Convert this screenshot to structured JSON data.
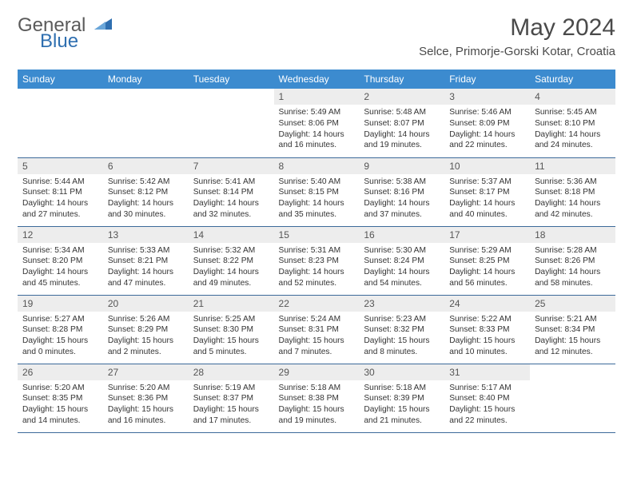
{
  "brand": {
    "part1": "General",
    "part2": "Blue"
  },
  "title": "May 2024",
  "location": "Selce, Primorje-Gorski Kotar, Croatia",
  "colors": {
    "header_bg": "#3c8bcf",
    "header_text": "#ffffff",
    "daynum_bg": "#ededed",
    "row_border": "#3c6a9a",
    "logo_blue": "#2f6fb0",
    "text": "#4a4a4a"
  },
  "day_headers": [
    "Sunday",
    "Monday",
    "Tuesday",
    "Wednesday",
    "Thursday",
    "Friday",
    "Saturday"
  ],
  "weeks": [
    [
      {
        "blank": true
      },
      {
        "blank": true
      },
      {
        "blank": true
      },
      {
        "n": "1",
        "sunrise": "5:49 AM",
        "sunset": "8:06 PM",
        "dl1": "Daylight: 14 hours",
        "dl2": "and 16 minutes."
      },
      {
        "n": "2",
        "sunrise": "5:48 AM",
        "sunset": "8:07 PM",
        "dl1": "Daylight: 14 hours",
        "dl2": "and 19 minutes."
      },
      {
        "n": "3",
        "sunrise": "5:46 AM",
        "sunset": "8:09 PM",
        "dl1": "Daylight: 14 hours",
        "dl2": "and 22 minutes."
      },
      {
        "n": "4",
        "sunrise": "5:45 AM",
        "sunset": "8:10 PM",
        "dl1": "Daylight: 14 hours",
        "dl2": "and 24 minutes."
      }
    ],
    [
      {
        "n": "5",
        "sunrise": "5:44 AM",
        "sunset": "8:11 PM",
        "dl1": "Daylight: 14 hours",
        "dl2": "and 27 minutes."
      },
      {
        "n": "6",
        "sunrise": "5:42 AM",
        "sunset": "8:12 PM",
        "dl1": "Daylight: 14 hours",
        "dl2": "and 30 minutes."
      },
      {
        "n": "7",
        "sunrise": "5:41 AM",
        "sunset": "8:14 PM",
        "dl1": "Daylight: 14 hours",
        "dl2": "and 32 minutes."
      },
      {
        "n": "8",
        "sunrise": "5:40 AM",
        "sunset": "8:15 PM",
        "dl1": "Daylight: 14 hours",
        "dl2": "and 35 minutes."
      },
      {
        "n": "9",
        "sunrise": "5:38 AM",
        "sunset": "8:16 PM",
        "dl1": "Daylight: 14 hours",
        "dl2": "and 37 minutes."
      },
      {
        "n": "10",
        "sunrise": "5:37 AM",
        "sunset": "8:17 PM",
        "dl1": "Daylight: 14 hours",
        "dl2": "and 40 minutes."
      },
      {
        "n": "11",
        "sunrise": "5:36 AM",
        "sunset": "8:18 PM",
        "dl1": "Daylight: 14 hours",
        "dl2": "and 42 minutes."
      }
    ],
    [
      {
        "n": "12",
        "sunrise": "5:34 AM",
        "sunset": "8:20 PM",
        "dl1": "Daylight: 14 hours",
        "dl2": "and 45 minutes."
      },
      {
        "n": "13",
        "sunrise": "5:33 AM",
        "sunset": "8:21 PM",
        "dl1": "Daylight: 14 hours",
        "dl2": "and 47 minutes."
      },
      {
        "n": "14",
        "sunrise": "5:32 AM",
        "sunset": "8:22 PM",
        "dl1": "Daylight: 14 hours",
        "dl2": "and 49 minutes."
      },
      {
        "n": "15",
        "sunrise": "5:31 AM",
        "sunset": "8:23 PM",
        "dl1": "Daylight: 14 hours",
        "dl2": "and 52 minutes."
      },
      {
        "n": "16",
        "sunrise": "5:30 AM",
        "sunset": "8:24 PM",
        "dl1": "Daylight: 14 hours",
        "dl2": "and 54 minutes."
      },
      {
        "n": "17",
        "sunrise": "5:29 AM",
        "sunset": "8:25 PM",
        "dl1": "Daylight: 14 hours",
        "dl2": "and 56 minutes."
      },
      {
        "n": "18",
        "sunrise": "5:28 AM",
        "sunset": "8:26 PM",
        "dl1": "Daylight: 14 hours",
        "dl2": "and 58 minutes."
      }
    ],
    [
      {
        "n": "19",
        "sunrise": "5:27 AM",
        "sunset": "8:28 PM",
        "dl1": "Daylight: 15 hours",
        "dl2": "and 0 minutes."
      },
      {
        "n": "20",
        "sunrise": "5:26 AM",
        "sunset": "8:29 PM",
        "dl1": "Daylight: 15 hours",
        "dl2": "and 2 minutes."
      },
      {
        "n": "21",
        "sunrise": "5:25 AM",
        "sunset": "8:30 PM",
        "dl1": "Daylight: 15 hours",
        "dl2": "and 5 minutes."
      },
      {
        "n": "22",
        "sunrise": "5:24 AM",
        "sunset": "8:31 PM",
        "dl1": "Daylight: 15 hours",
        "dl2": "and 7 minutes."
      },
      {
        "n": "23",
        "sunrise": "5:23 AM",
        "sunset": "8:32 PM",
        "dl1": "Daylight: 15 hours",
        "dl2": "and 8 minutes."
      },
      {
        "n": "24",
        "sunrise": "5:22 AM",
        "sunset": "8:33 PM",
        "dl1": "Daylight: 15 hours",
        "dl2": "and 10 minutes."
      },
      {
        "n": "25",
        "sunrise": "5:21 AM",
        "sunset": "8:34 PM",
        "dl1": "Daylight: 15 hours",
        "dl2": "and 12 minutes."
      }
    ],
    [
      {
        "n": "26",
        "sunrise": "5:20 AM",
        "sunset": "8:35 PM",
        "dl1": "Daylight: 15 hours",
        "dl2": "and 14 minutes."
      },
      {
        "n": "27",
        "sunrise": "5:20 AM",
        "sunset": "8:36 PM",
        "dl1": "Daylight: 15 hours",
        "dl2": "and 16 minutes."
      },
      {
        "n": "28",
        "sunrise": "5:19 AM",
        "sunset": "8:37 PM",
        "dl1": "Daylight: 15 hours",
        "dl2": "and 17 minutes."
      },
      {
        "n": "29",
        "sunrise": "5:18 AM",
        "sunset": "8:38 PM",
        "dl1": "Daylight: 15 hours",
        "dl2": "and 19 minutes."
      },
      {
        "n": "30",
        "sunrise": "5:18 AM",
        "sunset": "8:39 PM",
        "dl1": "Daylight: 15 hours",
        "dl2": "and 21 minutes."
      },
      {
        "n": "31",
        "sunrise": "5:17 AM",
        "sunset": "8:40 PM",
        "dl1": "Daylight: 15 hours",
        "dl2": "and 22 minutes."
      },
      {
        "blank": true
      }
    ]
  ]
}
